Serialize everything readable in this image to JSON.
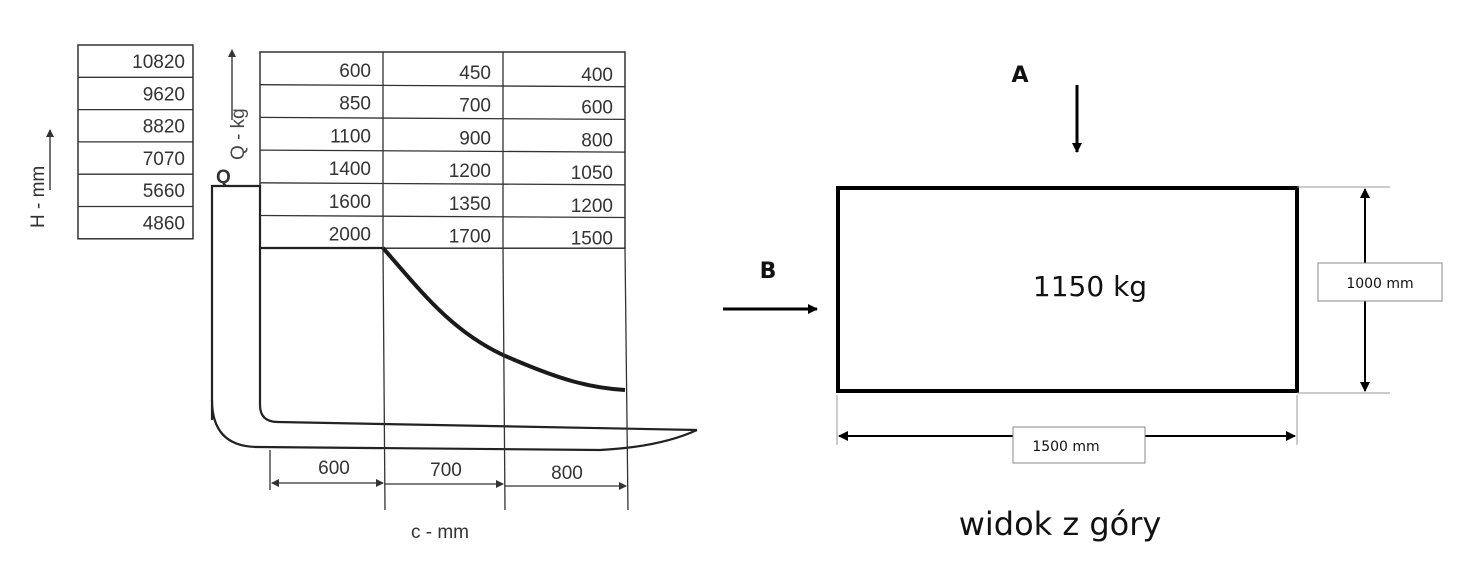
{
  "capacity_chart": {
    "height_axis_label": "H - mm",
    "load_axis_label": "Q - kg",
    "load_symbol": "Q",
    "distance_axis_label": "c - mm",
    "heights": [
      "10820",
      "9620",
      "8820",
      "7070",
      "5660",
      "4860"
    ],
    "load_table": [
      [
        "600",
        "450",
        "400"
      ],
      [
        "850",
        "700",
        "600"
      ],
      [
        "1100",
        "900",
        "800"
      ],
      [
        "1400",
        "1200",
        "1050"
      ],
      [
        "1600",
        "1350",
        "1200"
      ],
      [
        "2000",
        "1700",
        "1500"
      ]
    ],
    "distances": [
      "600",
      "700",
      "800"
    ]
  },
  "top_view": {
    "direction_a": "A",
    "direction_b": "B",
    "load_mass": "1150 kg",
    "depth_label": "1000 mm",
    "width_label": "1500 mm",
    "caption": "widok z góry"
  }
}
